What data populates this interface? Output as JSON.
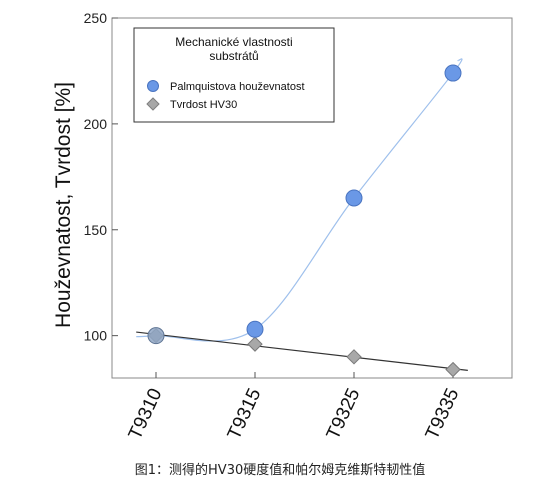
{
  "chart_data": {
    "type": "scatter",
    "title": "",
    "ylabel": "Houževnatost, Tvrdost [%]",
    "xlabel": "",
    "categories": [
      "T9310",
      "T9315",
      "T9325",
      "T9335"
    ],
    "ylim": [
      80,
      250
    ],
    "yticks": [
      100,
      150,
      200,
      250
    ],
    "legend": {
      "title": "Mechanické vlastnosti substrátů",
      "title_lines": [
        "Mechanické vlastnosti",
        "substrátů"
      ],
      "placement": "top-left"
    },
    "series": [
      {
        "name": "Palmquistova houževnatost",
        "values": [
          100,
          103,
          165,
          224
        ],
        "marker": "circle",
        "color": "#6a98e6",
        "trend": "curve",
        "trend_color": "#9fc0ec"
      },
      {
        "name": "Tvrdost HV30",
        "values": [
          100,
          96,
          90,
          84
        ],
        "marker": "diamond",
        "color": "#a8a8a8",
        "trend": "line",
        "trend_color": "#333333"
      }
    ]
  },
  "caption": "图1：测得的HV30硬度值和帕尔姆克维斯特韧性值"
}
